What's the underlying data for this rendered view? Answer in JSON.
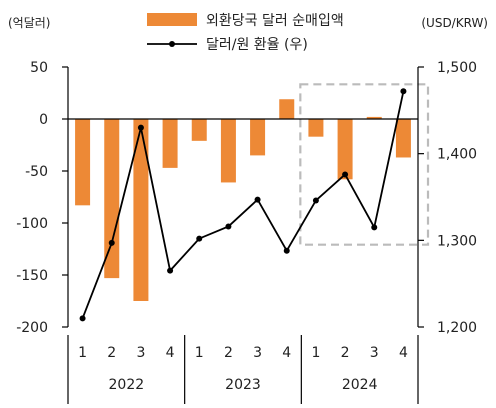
{
  "chart_data": {
    "type": "bar+line",
    "left_axis_unit": "(억달러)",
    "right_axis_unit": "(USD/KRW)",
    "left_ylim": [
      -200,
      50
    ],
    "left_ticks": [
      "50",
      "0",
      "-50",
      "-100",
      "-150",
      "-200"
    ],
    "left_tick_values": [
      50,
      0,
      -50,
      -100,
      -150,
      -200
    ],
    "right_ylim": [
      1200,
      1500
    ],
    "right_ticks": [
      "1,500",
      "1,400",
      "1,300",
      "1,200"
    ],
    "right_tick_values": [
      1500,
      1400,
      1300,
      1200
    ],
    "categories": [
      "1",
      "2",
      "3",
      "4",
      "1",
      "2",
      "3",
      "4",
      "1",
      "2",
      "3",
      "4"
    ],
    "year_labels": [
      "2022",
      "2023",
      "2024"
    ],
    "series": [
      {
        "name": "외환당국 달러 순매입액",
        "type": "bar",
        "axis": "left",
        "color": "#ED8936",
        "values": [
          -83,
          -153,
          -175,
          -47,
          -21,
          -61,
          -35,
          19,
          -17,
          -58,
          2,
          -37
        ]
      },
      {
        "name": "달러/원 환율 (우)",
        "type": "line",
        "axis": "right",
        "color": "#000000",
        "values": [
          1210,
          1297,
          1430,
          1265,
          1302,
          1316,
          1347,
          1288,
          1346,
          1376,
          1315,
          1472
        ]
      }
    ],
    "highlight_color": "#BBBBBB"
  }
}
